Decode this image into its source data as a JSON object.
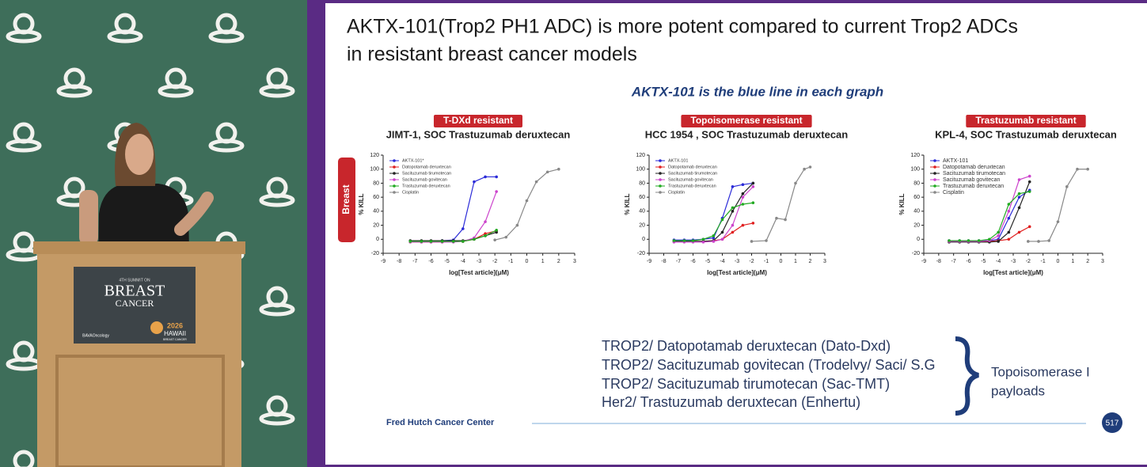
{
  "speaker_panel": {
    "podium_sign": {
      "edition": "4TH SUMMIT ON",
      "title_line1": "BREAST",
      "title_line2": "CANCER",
      "sponsor": "BAVAOncology",
      "event_year": "2026",
      "event_place": "HAWAII",
      "event_sub": "BREAST CANCER"
    }
  },
  "slide": {
    "title_lines": [
      "AKTX-101(Trop2 PH1 ADC) is more potent compared to current Trop2 ADCs",
      "in resistant breast cancer models"
    ],
    "subtitle": "AKTX-101 is the blue line in each graph",
    "side_label": "Breast",
    "list": [
      "TROP2/ Datopotamab deruxtecan (Dato-Dxd)",
      "TROP2/ Sacituzumab govitecan (Trodelvy/ Saci/ S.G",
      "TROP2/ Sacituzumab tirumotecan (Sac-TMT)",
      "Her2/ Trastuzumab deruxtecan (Enhertu)"
    ],
    "bracket_label_lines": [
      "Topoisomerase I",
      "payloads"
    ],
    "footer": "Fred Hutch Cancer Center",
    "page_number": "517"
  },
  "chart_data": [
    {
      "type": "line",
      "badge": "T-DXd resistant",
      "title": "JIMT-1, SOC Trastuzumab deruxtecan",
      "x_label": "log[Test article](μM)",
      "y_label": "% KILL",
      "xlim": [
        -9,
        3
      ],
      "xticks": [
        -9,
        -8,
        -7,
        -6,
        -5,
        -4,
        -3,
        -2,
        -1,
        0,
        1,
        2,
        3
      ],
      "ylim": [
        -20,
        120
      ],
      "yticks": [
        -20,
        0,
        20,
        40,
        60,
        80,
        100,
        120
      ],
      "series": [
        {
          "name": "AKTX-101*",
          "color": "#2b2bd8",
          "x": [
            -7.3,
            -6.6,
            -6,
            -5.3,
            -4.6,
            -4,
            -3.3,
            -2.6,
            -1.9
          ],
          "values": [
            -3,
            -3,
            -3,
            -2,
            -1,
            15,
            82,
            89,
            89
          ]
        },
        {
          "name": "Datopotamab deruxtecan",
          "color": "#e02020",
          "x": [
            -7.3,
            -6.6,
            -6,
            -5.3,
            -4.6,
            -4,
            -3.3,
            -2.6,
            -1.9
          ],
          "values": [
            -4,
            -4,
            -4,
            -4,
            -3,
            -3,
            0,
            8,
            12
          ]
        },
        {
          "name": "Sacituzumab tirumotecan",
          "color": "#222222",
          "x": [
            -7.3,
            -6.6,
            -6,
            -5.3,
            -4.6,
            -4,
            -3.3,
            -2.6,
            -1.9
          ],
          "values": [
            -2,
            -2,
            -2,
            -2,
            -2,
            -2,
            0,
            5,
            10
          ]
        },
        {
          "name": "Sacituzumab govitecan",
          "color": "#cc44cc",
          "x": [
            -7.3,
            -6.6,
            -6,
            -5.3,
            -4.6,
            -4,
            -3.3,
            -2.6,
            -1.9
          ],
          "values": [
            -4,
            -4,
            -4,
            -4,
            -4,
            -3,
            2,
            25,
            68
          ]
        },
        {
          "name": "Trastuzumab deruxtecan",
          "color": "#22aa22",
          "x": [
            -7.3,
            -6.6,
            -6,
            -5.3,
            -4.6,
            -4,
            -3.3,
            -2.6,
            -1.9
          ],
          "values": [
            -3,
            -3,
            -3,
            -3,
            -3,
            -3,
            0,
            5,
            13
          ]
        },
        {
          "name": "Cisplatin",
          "color": "#888888",
          "x": [
            -2,
            -1.3,
            -0.6,
            0,
            0.6,
            1.3,
            2
          ],
          "values": [
            -1,
            3,
            20,
            55,
            82,
            96,
            100
          ]
        }
      ]
    },
    {
      "type": "line",
      "badge": "Topoisomerase  resistant",
      "title": "HCC 1954 , SOC Trastuzumab deruxtecan",
      "x_label": "log[Test article](μM)",
      "y_label": "% KILL",
      "xlim": [
        -9,
        3
      ],
      "xticks": [
        -9,
        -8,
        -7,
        -6,
        -5,
        -4,
        -3,
        -2,
        -1,
        0,
        1,
        2,
        3
      ],
      "ylim": [
        -20,
        120
      ],
      "yticks": [
        -20,
        0,
        20,
        40,
        60,
        80,
        100,
        120
      ],
      "series": [
        {
          "name": "AKTX-101",
          "color": "#2b2bd8",
          "x": [
            -7.3,
            -6.6,
            -6,
            -5.3,
            -4.6,
            -4,
            -3.3,
            -2.6,
            -1.9
          ],
          "values": [
            -1,
            -1,
            -1,
            0,
            2,
            30,
            75,
            78,
            80
          ]
        },
        {
          "name": "Datopotamab deruxtecan",
          "color": "#e02020",
          "x": [
            -7.3,
            -6.6,
            -6,
            -5.3,
            -4.6,
            -4,
            -3.3,
            -2.6,
            -1.9
          ],
          "values": [
            -3,
            -3,
            -3,
            -3,
            -2,
            0,
            10,
            20,
            23
          ]
        },
        {
          "name": "Sacituzumab tirumotecan",
          "color": "#222222",
          "x": [
            -7.3,
            -6.6,
            -6,
            -5.3,
            -4.6,
            -4,
            -3.3,
            -2.6,
            -1.9
          ],
          "values": [
            -3,
            -3,
            -3,
            -3,
            -2,
            10,
            40,
            65,
            80
          ]
        },
        {
          "name": "Sacituzumab govitecan",
          "color": "#cc44cc",
          "x": [
            -7.3,
            -6.6,
            -6,
            -5.3,
            -4.6,
            -4,
            -3.3,
            -2.6,
            -1.9
          ],
          "values": [
            -4,
            -4,
            -4,
            -4,
            -3,
            0,
            20,
            60,
            75
          ]
        },
        {
          "name": "Trastuzumab deruxtecan",
          "color": "#22aa22",
          "x": [
            -7.3,
            -6.6,
            -6,
            -5.3,
            -4.6,
            -4,
            -3.3,
            -2.6,
            -1.9
          ],
          "values": [
            -2,
            -2,
            -2,
            0,
            5,
            28,
            45,
            50,
            52
          ]
        },
        {
          "name": "Cisplatin",
          "color": "#888888",
          "x": [
            -2,
            -1,
            -0.3,
            0.3,
            1,
            1.6,
            2
          ],
          "values": [
            -3,
            -2,
            30,
            28,
            80,
            100,
            103
          ]
        }
      ]
    },
    {
      "type": "line",
      "badge": "Trastuzumab resistant",
      "title": "KPL-4, SOC Trastuzumab deruxtecan",
      "x_label": "log[Test article](μM)",
      "y_label": "% KILL",
      "xlim": [
        -9,
        3
      ],
      "xticks": [
        -9,
        -8,
        -7,
        -6,
        -5,
        -4,
        -3,
        -2,
        -1,
        0,
        1,
        2,
        3
      ],
      "ylim": [
        -20,
        120
      ],
      "yticks": [
        -20,
        0,
        20,
        40,
        60,
        80,
        100,
        120
      ],
      "series": [
        {
          "name": "AKTX-101",
          "color": "#2b2bd8",
          "x": [
            -7.3,
            -6.6,
            -6,
            -5.3,
            -4.6,
            -4,
            -3.3,
            -2.6,
            -1.9
          ],
          "values": [
            -2,
            -2,
            -2,
            -2,
            -2,
            0,
            30,
            60,
            70
          ]
        },
        {
          "name": "Datopotamab deruxtecan",
          "color": "#e02020",
          "x": [
            -7.3,
            -6.6,
            -6,
            -5.3,
            -4.6,
            -4,
            -3.3,
            -2.6,
            -1.9
          ],
          "values": [
            -3,
            -3,
            -3,
            -3,
            -3,
            -2,
            0,
            10,
            18
          ]
        },
        {
          "name": "Sacituzumab tirumotecan",
          "color": "#222222",
          "x": [
            -7.3,
            -6.6,
            -6,
            -5.3,
            -4.6,
            -4,
            -3.3,
            -2.6,
            -1.9
          ],
          "values": [
            -4,
            -4,
            -4,
            -4,
            -4,
            -3,
            10,
            45,
            82
          ]
        },
        {
          "name": "Sacituzumab govitecan",
          "color": "#cc44cc",
          "x": [
            -7.3,
            -6.6,
            -6,
            -5.3,
            -4.6,
            -4,
            -3.3,
            -2.6,
            -1.9
          ],
          "values": [
            -3,
            -3,
            -3,
            -3,
            -2,
            5,
            40,
            85,
            90
          ]
        },
        {
          "name": "Trastuzumab deruxtecan",
          "color": "#22aa22",
          "x": [
            -7.3,
            -6.6,
            -6,
            -5.3,
            -4.6,
            -4,
            -3.3,
            -2.6,
            -1.9
          ],
          "values": [
            -2,
            -2,
            -2,
            -2,
            0,
            10,
            50,
            65,
            68
          ]
        },
        {
          "name": "Cisplatin",
          "color": "#888888",
          "x": [
            -2,
            -1.3,
            -0.6,
            0,
            0.6,
            1.3,
            2
          ],
          "values": [
            -3,
            -3,
            -2,
            25,
            75,
            100,
            100
          ]
        }
      ]
    }
  ]
}
